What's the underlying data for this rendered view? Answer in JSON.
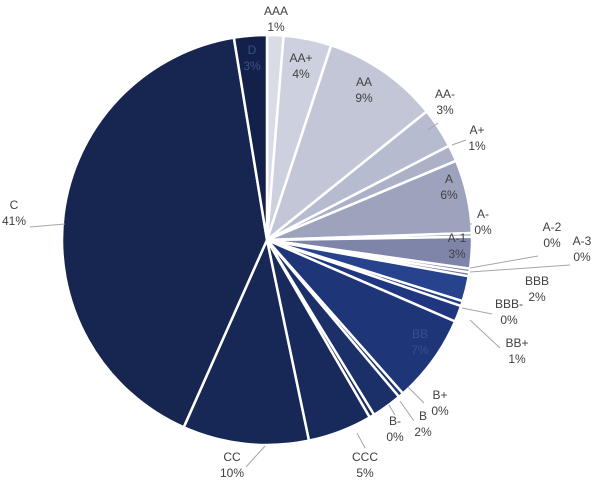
{
  "chart_data": {
    "type": "pie",
    "title": "",
    "slices": [
      {
        "name": "AAA",
        "label": "1%",
        "value": 1.3,
        "color": "#d9dce6"
      },
      {
        "name": "AA+",
        "label": "4%",
        "value": 3.8,
        "color": "#cdd0de"
      },
      {
        "name": "AA",
        "label": "9%",
        "value": 9.2,
        "color": "#c3c6d7"
      },
      {
        "name": "AA-",
        "label": "3%",
        "value": 3.2,
        "color": "#b7bbcf"
      },
      {
        "name": "A+",
        "label": "1%",
        "value": 1.3,
        "color": "#acb1c8"
      },
      {
        "name": "A",
        "label": "6%",
        "value": 5.8,
        "color": "#9da2bd"
      },
      {
        "name": "A-",
        "label": "0%",
        "value": 0.3,
        "color": "#9196b5"
      },
      {
        "name": "A-1",
        "label": "3%",
        "value": 2.5,
        "color": "#7f85a8"
      },
      {
        "name": "A-2",
        "label": "0%",
        "value": 0.3,
        "color": "#767d9f"
      },
      {
        "name": "A-3",
        "label": "0%",
        "value": 0.3,
        "color": "#6b7398"
      },
      {
        "name": "BBB",
        "label": "2%",
        "value": 2.0,
        "color": "#28438e"
      },
      {
        "name": "BBB-",
        "label": "0%",
        "value": 0.4,
        "color": "#233d86"
      },
      {
        "name": "BB+",
        "label": "1%",
        "value": 1.3,
        "color": "#1f3780"
      },
      {
        "name": "BB",
        "label": "7%",
        "value": 7.0,
        "color": "#1e3578"
      },
      {
        "name": "B+",
        "label": "0%",
        "value": 0.4,
        "color": "#1c326f"
      },
      {
        "name": "B",
        "label": "2%",
        "value": 2.4,
        "color": "#1b2f69"
      },
      {
        "name": "B-",
        "label": "0%",
        "value": 0.4,
        "color": "#1a2d63"
      },
      {
        "name": "CCC",
        "label": "5%",
        "value": 5.1,
        "color": "#182a5c"
      },
      {
        "name": "CC",
        "label": "10%",
        "value": 10.0,
        "color": "#172856"
      },
      {
        "name": "C",
        "label": "41%",
        "value": 41.0,
        "color": "#172650"
      },
      {
        "name": "D",
        "label": "3%",
        "value": 2.6,
        "color": "#13204a"
      }
    ]
  }
}
